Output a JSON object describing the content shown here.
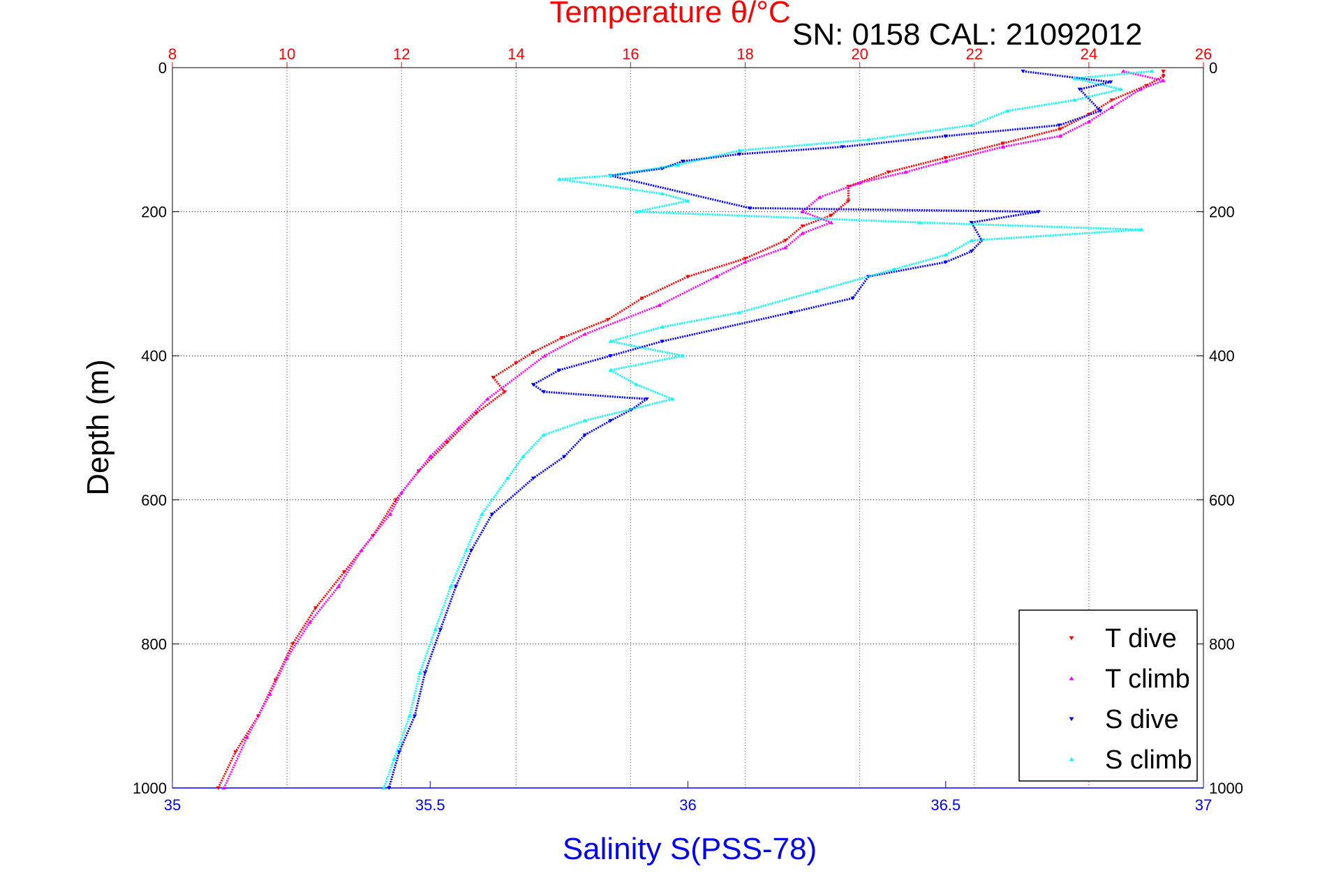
{
  "chart_data": {
    "type": "scatter",
    "title": "Temperature θ/°C",
    "subtitle": "SN: 0158  CAL: 21092012",
    "xlabel": "Salinity S(PSS-78)",
    "ylabel": "Depth (m)",
    "xlim_bottom": [
      35,
      37
    ],
    "xlim_top": [
      8,
      26
    ],
    "ylim": [
      0,
      1000
    ],
    "y_reversed": true,
    "grid": true,
    "legend_position": "bottom-right",
    "bottom_ticks": [
      "35",
      "35.5",
      "36",
      "36.5",
      "37"
    ],
    "top_ticks": [
      "8",
      "10",
      "12",
      "14",
      "16",
      "18",
      "20",
      "22",
      "24",
      "26"
    ],
    "y_ticks": [
      "0",
      "200",
      "400",
      "600",
      "800",
      "1000"
    ],
    "colors": {
      "t_dive": "#ff0000",
      "t_climb": "#ff00ff",
      "s_dive": "#0000ff",
      "s_climb": "#00ffff",
      "top_axis": "#ff0000",
      "bottom_axis": "#0000ff"
    },
    "series": [
      {
        "name": "T dive",
        "axis": "temperature",
        "marker": "down-triangle",
        "points": [
          [
            25.3,
            5
          ],
          [
            25.3,
            12
          ],
          [
            25.0,
            25
          ],
          [
            24.4,
            45
          ],
          [
            24.0,
            65
          ],
          [
            23.5,
            85
          ],
          [
            22.5,
            105
          ],
          [
            21.5,
            125
          ],
          [
            20.5,
            145
          ],
          [
            19.8,
            165
          ],
          [
            19.8,
            185
          ],
          [
            19.5,
            205
          ],
          [
            19.0,
            220
          ],
          [
            18.7,
            240
          ],
          [
            18.0,
            265
          ],
          [
            17.0,
            290
          ],
          [
            16.2,
            320
          ],
          [
            15.6,
            350
          ],
          [
            14.8,
            375
          ],
          [
            14.3,
            395
          ],
          [
            14.0,
            410
          ],
          [
            13.6,
            430
          ],
          [
            13.8,
            450
          ],
          [
            13.3,
            480
          ],
          [
            12.8,
            520
          ],
          [
            12.3,
            560
          ],
          [
            11.9,
            600
          ],
          [
            11.5,
            650
          ],
          [
            11.0,
            700
          ],
          [
            10.5,
            750
          ],
          [
            10.1,
            800
          ],
          [
            9.8,
            850
          ],
          [
            9.5,
            900
          ],
          [
            9.1,
            950
          ],
          [
            8.8,
            1000
          ]
        ]
      },
      {
        "name": "T climb",
        "axis": "temperature",
        "marker": "up-triangle",
        "points": [
          [
            24.6,
            5
          ],
          [
            25.3,
            18
          ],
          [
            24.9,
            30
          ],
          [
            24.4,
            55
          ],
          [
            24.0,
            75
          ],
          [
            23.5,
            95
          ],
          [
            22.5,
            110
          ],
          [
            21.5,
            130
          ],
          [
            20.8,
            145
          ],
          [
            20.0,
            160
          ],
          [
            19.3,
            180
          ],
          [
            19.0,
            200
          ],
          [
            19.5,
            215
          ],
          [
            19.0,
            230
          ],
          [
            18.7,
            250
          ],
          [
            18.0,
            270
          ],
          [
            17.5,
            290
          ],
          [
            16.5,
            330
          ],
          [
            15.2,
            370
          ],
          [
            14.5,
            400
          ],
          [
            13.5,
            460
          ],
          [
            13.0,
            500
          ],
          [
            12.5,
            540
          ],
          [
            12.0,
            590
          ],
          [
            11.8,
            620
          ],
          [
            11.3,
            670
          ],
          [
            10.9,
            720
          ],
          [
            10.4,
            770
          ],
          [
            10.0,
            820
          ],
          [
            9.7,
            870
          ],
          [
            9.3,
            930
          ],
          [
            8.9,
            1000
          ]
        ]
      },
      {
        "name": "S dive",
        "axis": "salinity",
        "marker": "down-triangle",
        "points": [
          [
            36.65,
            5
          ],
          [
            36.82,
            20
          ],
          [
            36.76,
            30
          ],
          [
            36.8,
            60
          ],
          [
            36.72,
            80
          ],
          [
            36.5,
            95
          ],
          [
            36.3,
            110
          ],
          [
            36.1,
            120
          ],
          [
            35.99,
            130
          ],
          [
            35.95,
            140
          ],
          [
            35.85,
            150
          ],
          [
            36.12,
            195
          ],
          [
            36.68,
            200
          ],
          [
            36.55,
            215
          ],
          [
            36.57,
            240
          ],
          [
            36.55,
            255
          ],
          [
            36.5,
            270
          ],
          [
            36.35,
            290
          ],
          [
            36.32,
            320
          ],
          [
            36.2,
            340
          ],
          [
            35.95,
            380
          ],
          [
            35.85,
            400
          ],
          [
            35.75,
            420
          ],
          [
            35.7,
            440
          ],
          [
            35.72,
            450
          ],
          [
            35.92,
            460
          ],
          [
            35.89,
            475
          ],
          [
            35.85,
            490
          ],
          [
            35.8,
            510
          ],
          [
            35.76,
            540
          ],
          [
            35.7,
            570
          ],
          [
            35.62,
            620
          ],
          [
            35.58,
            670
          ],
          [
            35.55,
            720
          ],
          [
            35.52,
            780
          ],
          [
            35.49,
            840
          ],
          [
            35.47,
            900
          ],
          [
            35.44,
            950
          ],
          [
            35.42,
            1000
          ]
        ]
      },
      {
        "name": "S climb",
        "axis": "salinity",
        "marker": "up-triangle",
        "points": [
          [
            36.9,
            5
          ],
          [
            36.75,
            15
          ],
          [
            36.84,
            30
          ],
          [
            36.75,
            45
          ],
          [
            36.62,
            60
          ],
          [
            36.55,
            80
          ],
          [
            36.35,
            100
          ],
          [
            36.1,
            115
          ],
          [
            35.98,
            135
          ],
          [
            35.85,
            150
          ],
          [
            35.75,
            155
          ],
          [
            35.95,
            175
          ],
          [
            36.0,
            185
          ],
          [
            35.9,
            200
          ],
          [
            36.45,
            215
          ],
          [
            36.88,
            225
          ],
          [
            36.55,
            240
          ],
          [
            36.5,
            260
          ],
          [
            36.4,
            280
          ],
          [
            36.25,
            310
          ],
          [
            36.1,
            340
          ],
          [
            35.95,
            360
          ],
          [
            35.85,
            380
          ],
          [
            35.99,
            400
          ],
          [
            35.85,
            420
          ],
          [
            35.9,
            440
          ],
          [
            35.97,
            460
          ],
          [
            35.8,
            490
          ],
          [
            35.72,
            510
          ],
          [
            35.68,
            540
          ],
          [
            35.65,
            570
          ],
          [
            35.6,
            620
          ],
          [
            35.57,
            670
          ],
          [
            35.54,
            720
          ],
          [
            35.51,
            780
          ],
          [
            35.48,
            840
          ],
          [
            35.46,
            900
          ],
          [
            35.43,
            960
          ],
          [
            35.41,
            1000
          ]
        ]
      }
    ]
  },
  "legend": {
    "items": [
      {
        "label": "T dive",
        "color": "#ff0000",
        "marker": "down-triangle"
      },
      {
        "label": "T climb",
        "color": "#ff00ff",
        "marker": "up-triangle"
      },
      {
        "label": "S dive",
        "color": "#0000ff",
        "marker": "down-triangle"
      },
      {
        "label": "S climb",
        "color": "#00ffff",
        "marker": "up-triangle"
      }
    ]
  }
}
